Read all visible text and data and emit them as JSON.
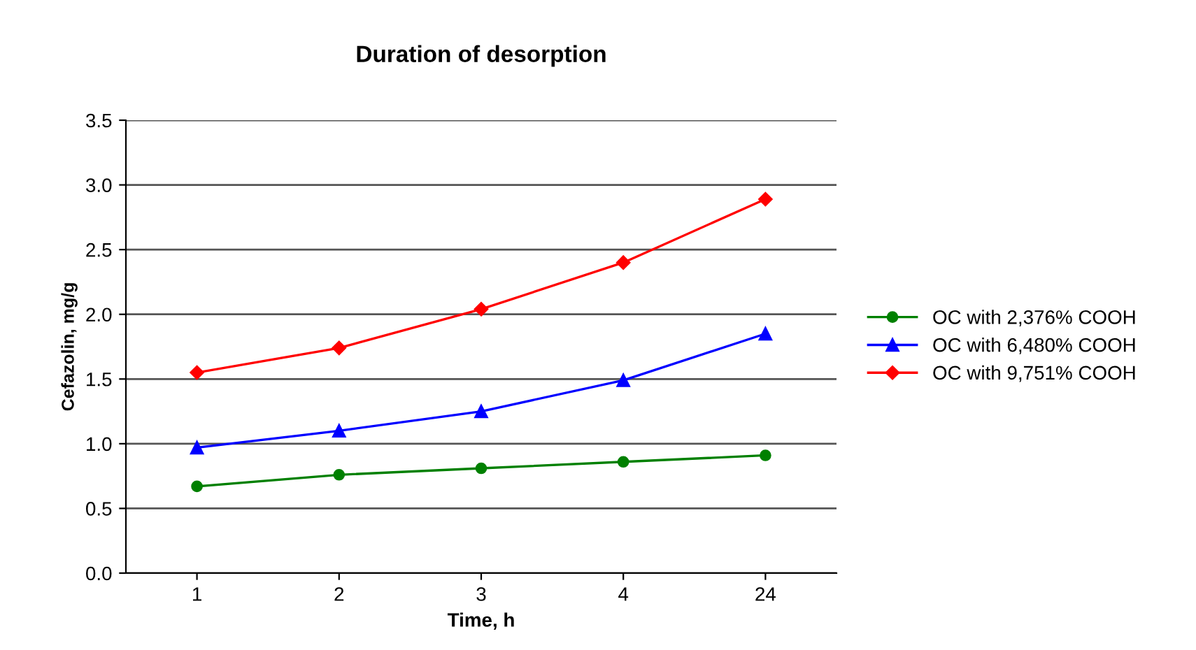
{
  "chart_data": {
    "type": "line",
    "title": "Duration of desorption",
    "xlabel": "Time, h",
    "ylabel": "Cefazolin, mg/g",
    "categories": [
      "1",
      "2",
      "3",
      "4",
      "24"
    ],
    "series": [
      {
        "name": "OC with 2,376% COOH",
        "color": "#008000",
        "marker": "circle",
        "values": [
          0.67,
          0.76,
          0.81,
          0.86,
          0.91
        ]
      },
      {
        "name": "OC with 6,480% COOH",
        "color": "#0000ff",
        "marker": "triangle",
        "values": [
          0.97,
          1.1,
          1.25,
          1.49,
          1.85
        ]
      },
      {
        "name": "OC with 9,751% COOH",
        "color": "#ff0000",
        "marker": "diamond",
        "values": [
          1.55,
          1.74,
          2.04,
          2.4,
          2.89
        ]
      }
    ],
    "ylim": [
      0,
      3.5
    ],
    "yticks": [
      {
        "value": 0,
        "label": "0.0"
      },
      {
        "value": 0.5,
        "label": "0.5"
      },
      {
        "value": 1,
        "label": "1.0"
      },
      {
        "value": 1.5,
        "label": "1.5"
      },
      {
        "value": 2,
        "label": "2.0"
      },
      {
        "value": 2.5,
        "label": "2.5"
      },
      {
        "value": 3,
        "label": "3.0"
      },
      {
        "value": 3.5,
        "label": "3.5"
      }
    ],
    "grid": "y",
    "legend": "right",
    "line_style": "solid"
  }
}
